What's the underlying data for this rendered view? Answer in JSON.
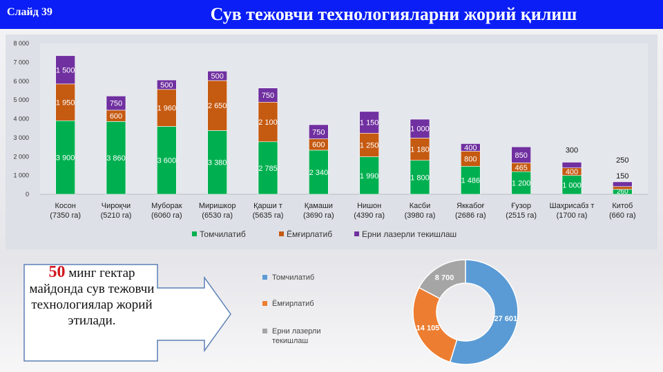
{
  "header": {
    "slide_number": "Слайд 39",
    "title": "Сув тежовчи технологияларни жорий қилиш"
  },
  "colors": {
    "drip": "#00b050",
    "furrow": "#c55a11",
    "laser": "#7030a0",
    "donut_drip": "#5b9bd5",
    "donut_furrow": "#ed7d31",
    "donut_laser": "#a5a5a5",
    "header_bar": "#0a1ef5",
    "callout_number": "#d0171f"
  },
  "chart_data": [
    {
      "type": "bar",
      "stacked": true,
      "categories": [
        "Косон (7350 га)",
        "Чироқчи (5210 га)",
        "Муборак (6060 га)",
        "Миришкор (6530 га)",
        "Қарши т (5635 га)",
        "Қамаши (3690 га)",
        "Нишон (4390 га)",
        "Касби (3980 га)",
        "Яккабоғ (2686 га)",
        "Ғузор (2515 га)",
        "Шаҳрисабз т (1700 га)",
        "Китоб (660 га)"
      ],
      "category_lines": [
        [
          "Косон",
          "(7350 га)"
        ],
        [
          "Чироқчи",
          "(5210 га)"
        ],
        [
          "Муборак",
          "(6060 га)"
        ],
        [
          "Миришкор",
          "(6530 га)"
        ],
        [
          "Қарши т",
          "(5635 га)"
        ],
        [
          "Қамаши",
          "(3690 га)"
        ],
        [
          "Нишон",
          "(4390 га)"
        ],
        [
          "Касби",
          "(3980 га)"
        ],
        [
          "Яккабоғ",
          "(2686 га)"
        ],
        [
          "Ғузор",
          "(2515 га)"
        ],
        [
          "Шаҳрисабз т",
          "(1700 га)"
        ],
        [
          "Китоб",
          "(660 га)"
        ]
      ],
      "series": [
        {
          "name": "Томчилатиб",
          "values": [
            3900,
            3860,
            3600,
            3380,
            2785,
            2340,
            1990,
            1800,
            1486,
            1200,
            1000,
            260
          ],
          "labels": [
            "3 900",
            "3 860",
            "3 600",
            "3 380",
            "2 785",
            "2 340",
            "1 990",
            "1 800",
            "1 486",
            "1 200",
            "1 000",
            "260"
          ]
        },
        {
          "name": "Ёмғирлатиб",
          "values": [
            1950,
            600,
            1960,
            2650,
            2100,
            600,
            1250,
            1180,
            800,
            465,
            400,
            150
          ],
          "labels": [
            "1 950",
            "600",
            "1 960",
            "2 650",
            "2 100",
            "600",
            "1 250",
            "1 180",
            "800",
            "465",
            "400",
            "150"
          ]
        },
        {
          "name": "Ерни лазерли текишлаш",
          "values": [
            1500,
            750,
            500,
            500,
            750,
            750,
            1150,
            1000,
            400,
            850,
            300,
            250
          ],
          "labels": [
            "1 500",
            "750",
            "500",
            "500",
            "750",
            "750",
            "1 150",
            "1 000",
            "400",
            "850",
            "300",
            "250"
          ]
        }
      ],
      "yticks": [
        "0",
        "1 000",
        "2 000",
        "3 000",
        "4 000",
        "5 000",
        "6 000",
        "7 000",
        "8 000"
      ],
      "ylim": [
        0,
        8000
      ],
      "legend": "bottom"
    },
    {
      "type": "pie",
      "donut": true,
      "labels": [
        "Томчилатиб",
        "Ёмғирлатиб",
        "Ерни лазерли текишлаш"
      ],
      "legend_lines": [
        [
          "Томчилатиб"
        ],
        [
          "Ёмғирлатиб"
        ],
        [
          "Ерни лазерли",
          "текишлаш"
        ]
      ],
      "values": [
        27601,
        14105,
        8700
      ],
      "value_labels": [
        "27 601",
        "14 105",
        "8 700"
      ],
      "legend": "left"
    }
  ],
  "callout": {
    "number": "50",
    "text_first": " минг гектар",
    "text_rest": "майдонда сув тежовчи технологиялар жорий этилади."
  }
}
